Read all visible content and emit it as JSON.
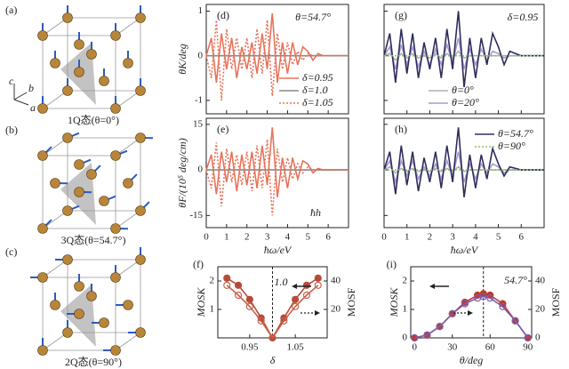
{
  "structures": [
    {
      "label": "(a)",
      "caption": "1Q态(θ=0°)"
    },
    {
      "label": "(b)",
      "caption": "3Q态(θ=54.7°)"
    },
    {
      "label": "(c)",
      "caption": "2Q态(θ=90°)"
    }
  ],
  "axes_labels": [
    "c",
    "b",
    "a"
  ],
  "chart_data": [
    {
      "type": "line",
      "label": "(d)",
      "ylabel": "θK/deg",
      "annotations": [
        "θ=54.7°"
      ],
      "legend": "lower right",
      "show_xtick_labels": false,
      "show_ytick_labels": true,
      "x": [
        0,
        0.25,
        0.5,
        0.75,
        1,
        1.25,
        1.5,
        1.75,
        2,
        2.25,
        2.5,
        2.75,
        3,
        3.25,
        3.5,
        3.75,
        4,
        4.25,
        4.5,
        4.75,
        5,
        5.25,
        5.5,
        5.75,
        6,
        6.25,
        6.5,
        6.75,
        7
      ],
      "xlim": [
        0,
        7
      ],
      "xticks": [
        0,
        1,
        2,
        3,
        4,
        5,
        6
      ],
      "ylim": [
        -1.3,
        1.15
      ],
      "yticks": [
        -1,
        0,
        1
      ],
      "series": [
        {
          "name": "δ=0.95",
          "color": "#e8735a",
          "dash": "solid",
          "values": [
            0,
            0.4,
            -0.6,
            0.5,
            -0.3,
            0.4,
            -0.5,
            0.2,
            -0.3,
            0.3,
            -0.4,
            0.5,
            -0.3,
            0.95,
            -0.6,
            0.3,
            -0.4,
            0.3,
            -0.2,
            0.2,
            0.1,
            -0.1,
            0.05,
            0,
            0,
            0,
            0,
            0,
            0
          ]
        },
        {
          "name": "δ=1.0",
          "color": "#8a8a8a",
          "dash": "solid",
          "values": [
            0,
            0,
            0,
            0,
            0,
            0,
            0,
            0,
            0,
            0,
            0,
            0,
            0,
            0,
            0,
            0,
            0,
            0,
            0,
            0,
            0,
            0,
            0,
            0,
            0,
            0,
            0,
            0,
            0
          ]
        },
        {
          "name": "δ=1.05",
          "color": "#e8735a",
          "dash": "dotted",
          "values": [
            0,
            -0.5,
            0.8,
            -1.0,
            0.6,
            -0.3,
            0.4,
            -0.3,
            0.4,
            -0.5,
            0.6,
            -0.4,
            0.8,
            -0.9,
            0.5,
            -0.3,
            0.3,
            -0.2,
            0.1,
            -0.1,
            0.05,
            0,
            0,
            0,
            0,
            0,
            0,
            0,
            0
          ]
        }
      ]
    },
    {
      "type": "line",
      "label": "(g)",
      "annotations": [
        "δ=0.95"
      ],
      "legend": "lower center",
      "show_xtick_labels": false,
      "show_ytick_labels": false,
      "x": [
        0,
        0.25,
        0.5,
        0.75,
        1,
        1.25,
        1.5,
        1.75,
        2,
        2.25,
        2.5,
        2.75,
        3,
        3.25,
        3.5,
        3.75,
        4,
        4.25,
        4.5,
        4.75,
        5,
        5.25,
        5.5,
        5.75,
        6,
        6.25,
        6.5,
        6.75,
        7
      ],
      "xlim": [
        0,
        7
      ],
      "xticks": [
        0,
        1,
        2,
        3,
        4,
        5,
        6
      ],
      "ylim": [
        -1.3,
        1.15
      ],
      "yticks": [
        -1,
        0,
        1
      ],
      "series": [
        {
          "name": "θ=0°",
          "color": "#b0b0b0",
          "dash": "solid",
          "values": [
            0,
            0.05,
            -0.1,
            0.05,
            -0.05,
            0.05,
            -0.05,
            0,
            -0.05,
            0.05,
            -0.05,
            0.05,
            -0.05,
            0.1,
            -0.05,
            0,
            0,
            0,
            0,
            0,
            0,
            0,
            0,
            0,
            0,
            0,
            0,
            0,
            0
          ]
        },
        {
          "name": "θ=20°",
          "color": "#a79bd0",
          "dash": "solid",
          "values": [
            0,
            0.2,
            -0.3,
            0.25,
            -0.2,
            0.2,
            -0.25,
            0.1,
            -0.2,
            0.15,
            -0.2,
            0.25,
            -0.15,
            0.4,
            -0.3,
            0.15,
            -0.2,
            0.15,
            -0.1,
            0.1,
            0.05,
            -0.05,
            0,
            0,
            0,
            0,
            0,
            0,
            0
          ]
        },
        {
          "color": "#2e2d5e",
          "dash": "solid",
          "values": [
            0,
            0.5,
            -0.6,
            0.6,
            -0.4,
            0.5,
            -0.5,
            0.3,
            -0.3,
            0.4,
            -0.5,
            0.6,
            -0.3,
            1.0,
            -0.7,
            0.4,
            -0.5,
            0.4,
            -0.2,
            0.5,
            0.2,
            -0.2,
            0.1,
            0.05,
            0,
            0,
            0,
            0,
            0
          ]
        },
        {
          "color": "#8fc060",
          "dash": "dotted",
          "values": [
            0,
            0,
            0,
            0,
            0,
            0,
            0,
            0,
            0,
            0,
            0,
            0,
            0,
            0,
            0,
            0,
            0,
            0,
            0,
            0,
            0,
            0,
            0,
            0,
            0,
            0,
            0,
            0,
            0
          ]
        }
      ]
    },
    {
      "type": "line",
      "label": "(e)",
      "ylabel": "θF/(10⁵ deg/cm)",
      "xlabel": "ħω/eV",
      "annotations": [
        "ħh"
      ],
      "show_xtick_labels": true,
      "show_ytick_labels": true,
      "x": [
        0,
        0.25,
        0.5,
        0.75,
        1,
        1.25,
        1.5,
        1.75,
        2,
        2.25,
        2.5,
        2.75,
        3,
        3.25,
        3.5,
        3.75,
        4,
        4.25,
        4.5,
        4.75,
        5,
        5.25,
        5.5,
        5.75,
        6,
        6.25,
        6.5,
        6.75,
        7
      ],
      "xlim": [
        0,
        7
      ],
      "xticks": [
        0,
        1,
        2,
        3,
        4,
        5,
        6
      ],
      "ylim": [
        -19,
        17
      ],
      "yticks": [
        -15,
        0,
        15
      ],
      "series": [
        {
          "color": "#e8735a",
          "dash": "solid",
          "values": [
            0,
            5,
            -8,
            6,
            -4,
            6,
            -7,
            5,
            -5,
            6,
            -6,
            8,
            -5,
            14,
            -9,
            4,
            -6,
            4,
            -3,
            3,
            2,
            -1,
            0.5,
            0,
            0,
            0,
            0,
            0,
            0
          ]
        },
        {
          "color": "#8a8a8a",
          "dash": "solid",
          "values": [
            0,
            0,
            0,
            0,
            0,
            0,
            0,
            0,
            0,
            0,
            0,
            0,
            0,
            0,
            0,
            0,
            0,
            0,
            0,
            0,
            0,
            0,
            0,
            0,
            0,
            0,
            0,
            0,
            0
          ]
        },
        {
          "color": "#e8735a",
          "dash": "dotted",
          "values": [
            0,
            -6,
            9,
            -12,
            7,
            -4,
            5,
            -5,
            6,
            -7,
            8,
            -6,
            10,
            -15,
            7,
            -4,
            4,
            -3,
            2,
            -1,
            1,
            0,
            0,
            0,
            0,
            0,
            0,
            0,
            0
          ]
        }
      ]
    },
    {
      "type": "line",
      "label": "(h)",
      "xlabel": "ħω/eV",
      "legend": "upper right",
      "show_xtick_labels": true,
      "show_ytick_labels": false,
      "x": [
        0,
        0.25,
        0.5,
        0.75,
        1,
        1.25,
        1.5,
        1.75,
        2,
        2.25,
        2.5,
        2.75,
        3,
        3.25,
        3.5,
        3.75,
        4,
        4.25,
        4.5,
        4.75,
        5,
        5.25,
        5.5,
        5.75,
        6,
        6.25,
        6.5,
        6.75,
        7
      ],
      "xlim": [
        0,
        7
      ],
      "xticks": [
        0,
        1,
        2,
        3,
        4,
        5,
        6
      ],
      "ylim": [
        -19,
        17
      ],
      "yticks": [
        -15,
        0,
        15
      ],
      "series": [
        {
          "color": "#b0b0b0",
          "dash": "solid",
          "values": [
            0,
            1,
            -1,
            0.5,
            -0.5,
            0.5,
            -0.5,
            0,
            -0.5,
            0.5,
            -0.5,
            0.5,
            -0.5,
            1,
            -0.5,
            0,
            0,
            0,
            0,
            0,
            0,
            0,
            0,
            0,
            0,
            0,
            0,
            0,
            0
          ]
        },
        {
          "color": "#a79bd0",
          "dash": "solid",
          "values": [
            0,
            3,
            -4,
            3,
            -2,
            3,
            -3,
            1,
            -2,
            2,
            -3,
            3,
            -2,
            6,
            -4,
            2,
            -3,
            2,
            -1,
            2,
            1,
            -1,
            0,
            0,
            0,
            0,
            0,
            0,
            0
          ]
        },
        {
          "name": "θ=54.7°",
          "color": "#2e2d5e",
          "dash": "solid",
          "values": [
            0,
            6,
            -8,
            8,
            -5,
            6,
            -7,
            4,
            -4,
            6,
            -6,
            8,
            -4,
            14,
            -9,
            5,
            -6,
            5,
            -3,
            7,
            2,
            -2,
            1,
            0.5,
            0,
            0,
            0,
            0,
            0
          ]
        },
        {
          "name": "θ=90°",
          "color": "#8fc060",
          "dash": "dotted",
          "values": [
            0,
            0,
            0,
            0,
            0,
            0,
            0,
            0,
            0,
            0,
            0,
            0,
            0,
            0,
            0,
            0,
            0,
            0,
            0,
            0,
            0,
            0,
            0,
            0,
            0,
            0,
            0,
            0,
            0
          ]
        }
      ]
    },
    {
      "type": "line",
      "label": "(f)",
      "ylabel": "MOSK",
      "y2label": "MOSF",
      "xlabel": "δ",
      "annotations": [
        "1.0"
      ],
      "show_xtick_labels": true,
      "show_ytick_labels": true,
      "vline": 1.0,
      "x": [
        0.9,
        0.925,
        0.95,
        0.975,
        1.0,
        1.025,
        1.05,
        1.075,
        1.1
      ],
      "xlim": [
        0.88,
        1.12
      ],
      "xticks": [
        0.95,
        1.05
      ],
      "ylim": [
        0,
        2.5
      ],
      "yticks": [
        1,
        2
      ],
      "y2lim": [
        0,
        50
      ],
      "y2ticks": [
        20,
        40
      ],
      "series": [
        {
          "color": "#b84a3a",
          "dash": "solid",
          "marker": "filled",
          "values": [
            2.1,
            1.85,
            1.35,
            0.7,
            0,
            0.7,
            1.35,
            1.85,
            2.1
          ]
        },
        {
          "color": "#c9604a",
          "dash": "solid",
          "marker": "open",
          "axis": "y2",
          "values": [
            37,
            30,
            22,
            12,
            0,
            12,
            22,
            30,
            37
          ]
        }
      ]
    },
    {
      "type": "line",
      "label": "(i)",
      "ylabel": "MOSK",
      "y2label": "MOSF",
      "xlabel": "θ/deg",
      "annotations": [
        "54.7°"
      ],
      "show_xtick_labels": true,
      "show_ytick_labels": true,
      "vline": 54.7,
      "x": [
        0,
        10,
        20,
        30,
        40,
        50,
        54.7,
        60,
        70,
        80,
        90
      ],
      "xlim": [
        -3,
        93
      ],
      "xticks": [
        0,
        30,
        60,
        90
      ],
      "ylim": [
        0,
        2.5
      ],
      "yticks": [
        0,
        1,
        2
      ],
      "y2lim": [
        0,
        50
      ],
      "y2ticks": [
        0,
        20,
        40
      ],
      "series": [
        {
          "color": "#c0392b",
          "dash": "solid",
          "marker": "filled",
          "values": [
            0,
            0.1,
            0.4,
            0.85,
            1.25,
            1.5,
            1.55,
            1.5,
            1.2,
            0.6,
            0
          ]
        },
        {
          "color": "#7a5fb0",
          "dash": "solid",
          "marker": "open",
          "axis": "y2",
          "values": [
            0,
            2,
            8,
            17,
            24,
            28,
            29,
            28,
            22,
            12,
            0
          ]
        }
      ]
    }
  ]
}
